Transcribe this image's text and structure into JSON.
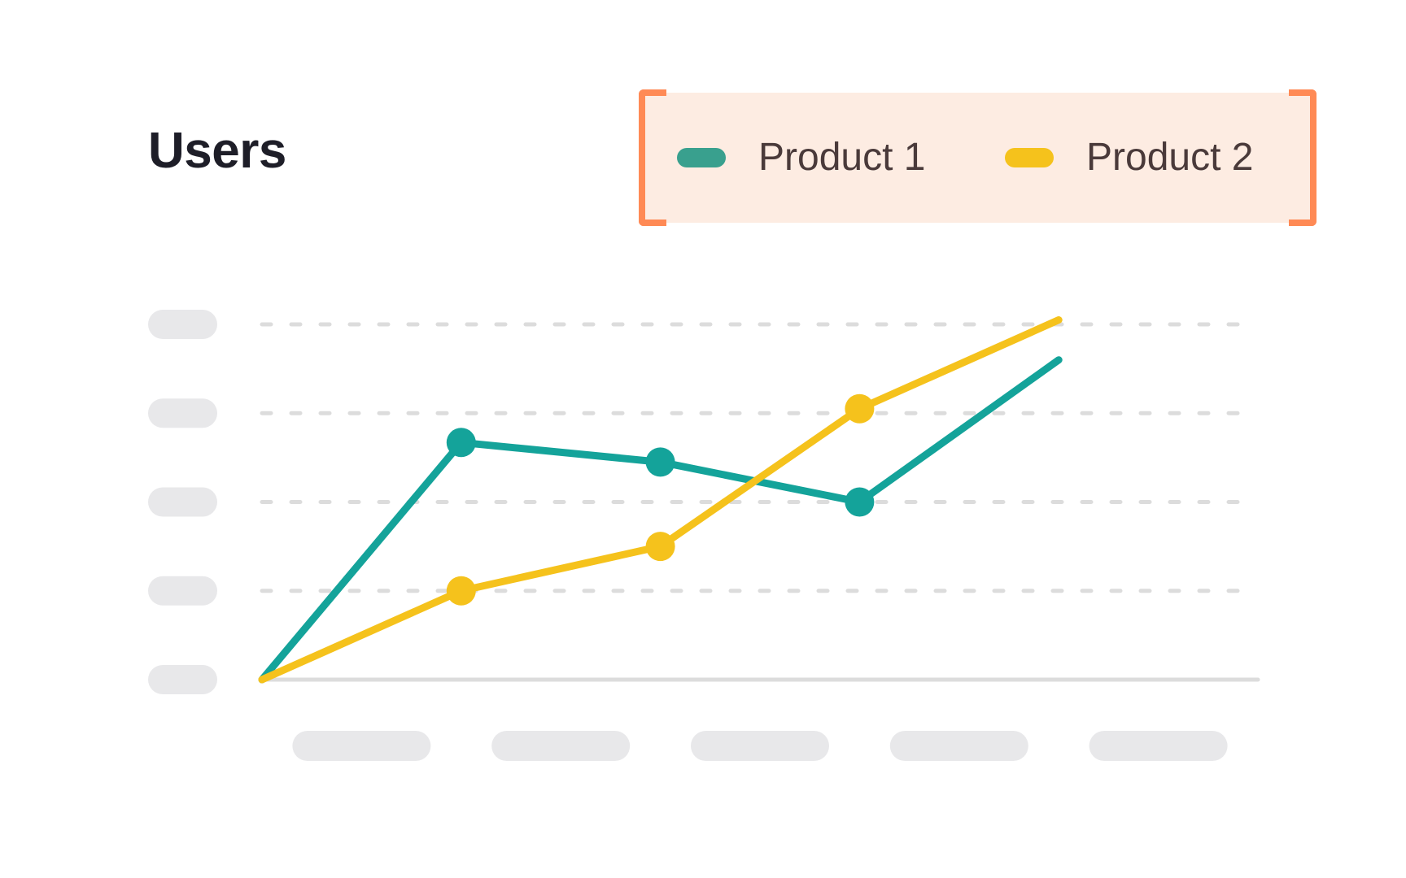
{
  "chart_data": {
    "type": "line",
    "title": "Users",
    "categories": [
      "",
      "",
      "",
      "",
      ""
    ],
    "x": [
      0,
      1,
      2,
      3,
      4,
      5
    ],
    "ylim": [
      0,
      4
    ],
    "grid": true,
    "legend_position": "top-right",
    "series": [
      {
        "name": "Product 1",
        "color": "#14a39a",
        "values": [
          0,
          2.67,
          2.45,
          2.0,
          3.6
        ]
      },
      {
        "name": "Product 2",
        "color": "#f5c21c",
        "values": [
          0,
          1.0,
          1.5,
          3.05,
          4.05
        ]
      }
    ],
    "markers_on_points": [
      1,
      2,
      3
    ]
  },
  "colors": {
    "placeholder": "#e8e8ea",
    "gridline": "#dcdcdc",
    "axis": "#dcdcdc",
    "legend_bg": "#fdece2",
    "legend_bracket": "#ff8a55",
    "legend_swatch_1": "#39a08e"
  }
}
